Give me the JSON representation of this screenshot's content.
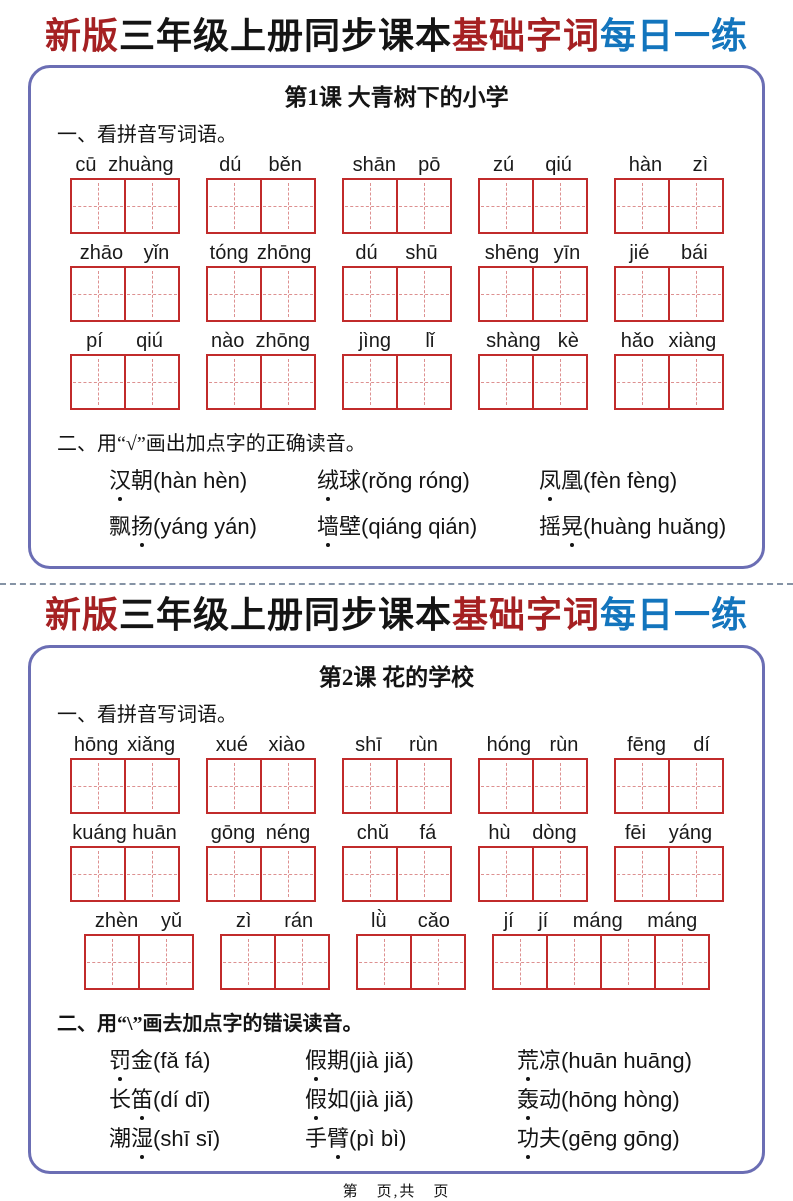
{
  "colors": {
    "title_red": "#a52022",
    "title_blue": "#1375bd",
    "text_black": "#141414",
    "grid_border_red": "#c12b2b",
    "grid_dash_red": "#dd9090",
    "box_border_purple": "#6b6eb4",
    "separator_gray": "#8593a5"
  },
  "footer": {
    "text": "第　页,共　页"
  },
  "worksheets": [
    {
      "title_segments": [
        {
          "text": "新版",
          "color": "#a52022"
        },
        {
          "text": "三年级上册同步课本",
          "color": "#141414"
        },
        {
          "text": "基础字词",
          "color": "#a52022"
        },
        {
          "text": "每日一练",
          "color": "#1375bd"
        }
      ],
      "lesson_title": "第1课 大青树下的小学",
      "section1_heading": "一、看拼音写词语。",
      "pinyin_rows": [
        [
          [
            "cū",
            "zhuàng"
          ],
          [
            "dú",
            "běn"
          ],
          [
            "shān",
            "pō"
          ],
          [
            "zú",
            "qiú"
          ],
          [
            "hàn",
            "zì"
          ]
        ],
        [
          [
            "zhāo",
            "yǐn"
          ],
          [
            "tóng",
            "zhōng"
          ],
          [
            "dú",
            "shū"
          ],
          [
            "shēng",
            "yīn"
          ],
          [
            "jié",
            "bái"
          ]
        ],
        [
          [
            "pí",
            "qiú"
          ],
          [
            "nào",
            "zhōng"
          ],
          [
            "jìng",
            "lǐ"
          ],
          [
            "shàng",
            "kè"
          ],
          [
            "hǎo",
            "xiàng"
          ]
        ]
      ],
      "section2_heading": "二、用“√”画出加点字的正确读音。",
      "phonics_rows": [
        [
          {
            "word": "汉朝",
            "dot": 0,
            "options": "(hàn  hèn)"
          },
          {
            "word": "绒球",
            "dot": 0,
            "options": "(rǒng  róng)"
          },
          {
            "word": "凤凰",
            "dot": 0,
            "options": "(fèn  fèng)"
          }
        ],
        [
          {
            "word": "飘扬",
            "dot": 1,
            "options": "(yáng  yán)"
          },
          {
            "word": "墙壁",
            "dot": 0,
            "options": "(qiáng  qián)"
          },
          {
            "word": "摇晃",
            "dot": 1,
            "options": "(huàng  huǎng)"
          }
        ]
      ]
    },
    {
      "title_segments": [
        {
          "text": "新版",
          "color": "#a52022"
        },
        {
          "text": "三年级上册同步课本",
          "color": "#141414"
        },
        {
          "text": "基础字词",
          "color": "#a52022"
        },
        {
          "text": "每日一练",
          "color": "#1375bd"
        }
      ],
      "lesson_title": "第2课 花的学校",
      "section1_heading": "一、看拼音写词语。",
      "pinyin_rows": [
        [
          [
            "hōng",
            "xiǎng"
          ],
          [
            "xué",
            "xiào"
          ],
          [
            "shī",
            "rùn"
          ],
          [
            "hóng",
            "rùn"
          ],
          [
            "fēng",
            "dí"
          ]
        ],
        [
          [
            "kuáng",
            "huān"
          ],
          [
            "gōng",
            "néng"
          ],
          [
            "chǔ",
            "fá"
          ],
          [
            "hù",
            "dòng"
          ],
          [
            "fēi",
            "yáng"
          ]
        ],
        [
          [
            "zhèn",
            "yǔ"
          ],
          [
            "zì",
            "rán"
          ],
          [
            "lǜ",
            "cǎo"
          ],
          [
            "jí",
            "jí",
            "máng",
            "máng"
          ]
        ]
      ],
      "section2_heading": "二、用“\\”画去加点字的错误读音。",
      "phonics_rows": [
        [
          {
            "word": "罚金",
            "dot": 0,
            "options": "(fǎ  fá)"
          },
          {
            "word": "假期",
            "dot": 0,
            "options": "(jià  jiǎ)"
          },
          {
            "word": "荒凉",
            "dot": 0,
            "options": "(huān  huāng)"
          }
        ],
        [
          {
            "word": "长笛",
            "dot": 1,
            "options": "(dí  dī)"
          },
          {
            "word": "假如",
            "dot": 0,
            "options": "(jià  jiǎ)"
          },
          {
            "word": "轰动",
            "dot": 0,
            "options": "(hōng  hòng)"
          }
        ],
        [
          {
            "word": "潮湿",
            "dot": 1,
            "options": "(shī  sī)"
          },
          {
            "word": "手臂",
            "dot": 1,
            "options": "(pì  bì)"
          },
          {
            "word": "功夫",
            "dot": 0,
            "options": "(gēng  gōng)"
          }
        ]
      ]
    }
  ]
}
